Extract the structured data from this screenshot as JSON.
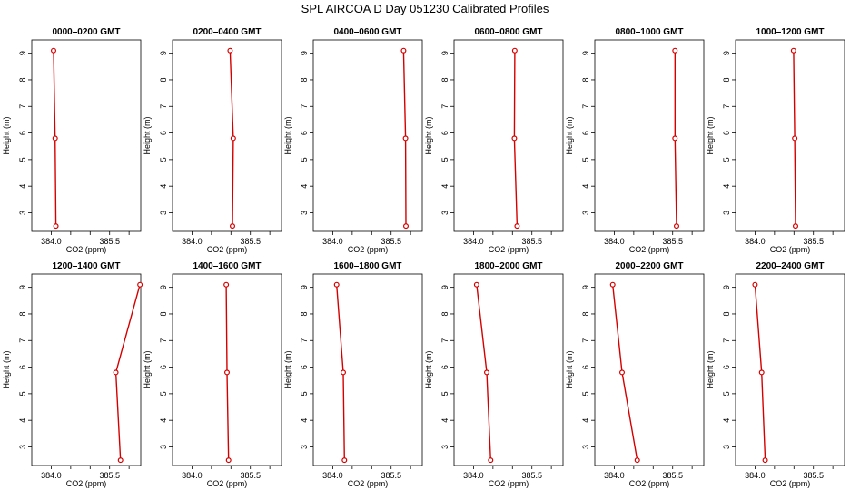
{
  "title": "SPL AIRCOA D  Day 051230  Calibrated Profiles",
  "chart_data": {
    "type": "line",
    "xlabel": "CO2 (ppm)",
    "ylabel": "Height (m)",
    "xlim": [
      383.5,
      386.3
    ],
    "ylim": [
      2.3,
      9.5
    ],
    "xticks": [
      384.0,
      384.5,
      385.0,
      385.5,
      386.0
    ],
    "xtick_labels": [
      "384.0",
      "385.5"
    ],
    "yticks": [
      3,
      4,
      5,
      6,
      7,
      8,
      9
    ],
    "ytick_labels": [
      "3",
      "4",
      "5",
      "6",
      "7",
      "8",
      "9"
    ],
    "grid": false,
    "series_color": "#d40000",
    "panels": [
      {
        "title": "0000–0200 GMT",
        "points": [
          {
            "x": 384.12,
            "y": 2.5
          },
          {
            "x": 384.1,
            "y": 5.8
          },
          {
            "x": 384.06,
            "y": 9.1
          }
        ]
      },
      {
        "title": "0200–0400 GMT",
        "points": [
          {
            "x": 385.04,
            "y": 2.5
          },
          {
            "x": 385.06,
            "y": 5.8
          },
          {
            "x": 384.98,
            "y": 9.1
          }
        ]
      },
      {
        "title": "0400–0600 GMT",
        "points": [
          {
            "x": 385.88,
            "y": 2.5
          },
          {
            "x": 385.87,
            "y": 5.8
          },
          {
            "x": 385.82,
            "y": 9.1
          }
        ]
      },
      {
        "title": "0600–0800 GMT",
        "points": [
          {
            "x": 385.12,
            "y": 2.5
          },
          {
            "x": 385.05,
            "y": 5.8
          },
          {
            "x": 385.06,
            "y": 9.1
          }
        ]
      },
      {
        "title": "0800–1000 GMT",
        "points": [
          {
            "x": 385.6,
            "y": 2.5
          },
          {
            "x": 385.56,
            "y": 5.8
          },
          {
            "x": 385.56,
            "y": 9.1
          }
        ]
      },
      {
        "title": "1000–1200 GMT",
        "points": [
          {
            "x": 385.04,
            "y": 2.5
          },
          {
            "x": 385.02,
            "y": 5.8
          },
          {
            "x": 384.99,
            "y": 9.1
          }
        ]
      },
      {
        "title": "1200–1400 GMT",
        "points": [
          {
            "x": 385.78,
            "y": 2.5
          },
          {
            "x": 385.66,
            "y": 5.8
          },
          {
            "x": 386.28,
            "y": 9.1
          }
        ]
      },
      {
        "title": "1400–1600 GMT",
        "points": [
          {
            "x": 384.94,
            "y": 2.5
          },
          {
            "x": 384.9,
            "y": 5.8
          },
          {
            "x": 384.88,
            "y": 9.1
          }
        ]
      },
      {
        "title": "1600–1800 GMT",
        "points": [
          {
            "x": 384.3,
            "y": 2.5
          },
          {
            "x": 384.27,
            "y": 5.8
          },
          {
            "x": 384.1,
            "y": 9.1
          }
        ]
      },
      {
        "title": "1800–2000 GMT",
        "points": [
          {
            "x": 384.44,
            "y": 2.5
          },
          {
            "x": 384.34,
            "y": 5.8
          },
          {
            "x": 384.08,
            "y": 9.1
          }
        ]
      },
      {
        "title": "2000–2200 GMT",
        "points": [
          {
            "x": 384.59,
            "y": 2.5
          },
          {
            "x": 384.2,
            "y": 5.8
          },
          {
            "x": 383.96,
            "y": 9.1
          }
        ]
      },
      {
        "title": "2200–2400 GMT",
        "points": [
          {
            "x": 384.26,
            "y": 2.5
          },
          {
            "x": 384.17,
            "y": 5.8
          },
          {
            "x": 384.0,
            "y": 9.1
          }
        ]
      }
    ]
  }
}
